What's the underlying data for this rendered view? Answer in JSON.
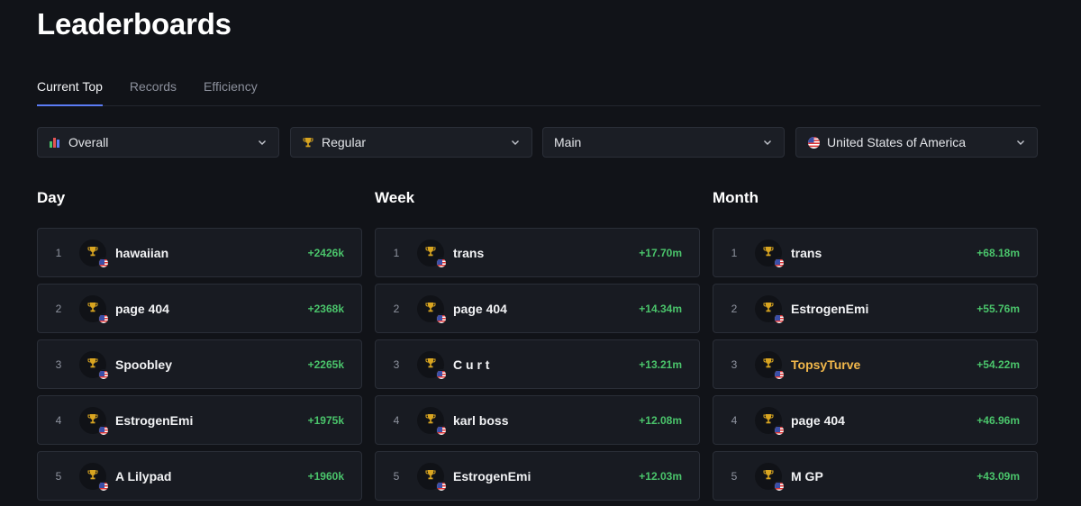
{
  "page": {
    "title": "Leaderboards"
  },
  "tabs": [
    {
      "label": "Current Top",
      "active": true
    },
    {
      "label": "Records",
      "active": false
    },
    {
      "label": "Efficiency",
      "active": false
    }
  ],
  "filters": [
    {
      "label": "Overall",
      "icon": "bar-chart-icon"
    },
    {
      "label": "Regular",
      "icon": "trophy-icon"
    },
    {
      "label": "Main",
      "icon": ""
    },
    {
      "label": "United States of America",
      "icon": "us-flag-icon"
    }
  ],
  "colors": {
    "background": "#111318",
    "card": "#181b22",
    "accent": "#5b7cf5",
    "positive": "#4ac46b",
    "highlight": "#f2b84b",
    "trophy": "#d9a520"
  },
  "boards": {
    "day": {
      "title": "Day",
      "rows": [
        {
          "rank": "1",
          "name": "hawaiian",
          "score": "+2426k",
          "highlight": false
        },
        {
          "rank": "2",
          "name": "page 404",
          "score": "+2368k",
          "highlight": false
        },
        {
          "rank": "3",
          "name": "Spoobley",
          "score": "+2265k",
          "highlight": false
        },
        {
          "rank": "4",
          "name": "EstrogenEmi",
          "score": "+1975k",
          "highlight": false
        },
        {
          "rank": "5",
          "name": "A Lilypad",
          "score": "+1960k",
          "highlight": false
        }
      ]
    },
    "week": {
      "title": "Week",
      "rows": [
        {
          "rank": "1",
          "name": "trans",
          "score": "+17.70m",
          "highlight": false
        },
        {
          "rank": "2",
          "name": "page 404",
          "score": "+14.34m",
          "highlight": false
        },
        {
          "rank": "3",
          "name": "C u r t",
          "score": "+13.21m",
          "highlight": false
        },
        {
          "rank": "4",
          "name": "karl boss",
          "score": "+12.08m",
          "highlight": false
        },
        {
          "rank": "5",
          "name": "EstrogenEmi",
          "score": "+12.03m",
          "highlight": false
        }
      ]
    },
    "month": {
      "title": "Month",
      "rows": [
        {
          "rank": "1",
          "name": "trans",
          "score": "+68.18m",
          "highlight": false
        },
        {
          "rank": "2",
          "name": "EstrogenEmi",
          "score": "+55.76m",
          "highlight": false
        },
        {
          "rank": "3",
          "name": "TopsyTurve",
          "score": "+54.22m",
          "highlight": true
        },
        {
          "rank": "4",
          "name": "page 404",
          "score": "+46.96m",
          "highlight": false
        },
        {
          "rank": "5",
          "name": "M GP",
          "score": "+43.09m",
          "highlight": false
        }
      ]
    }
  }
}
